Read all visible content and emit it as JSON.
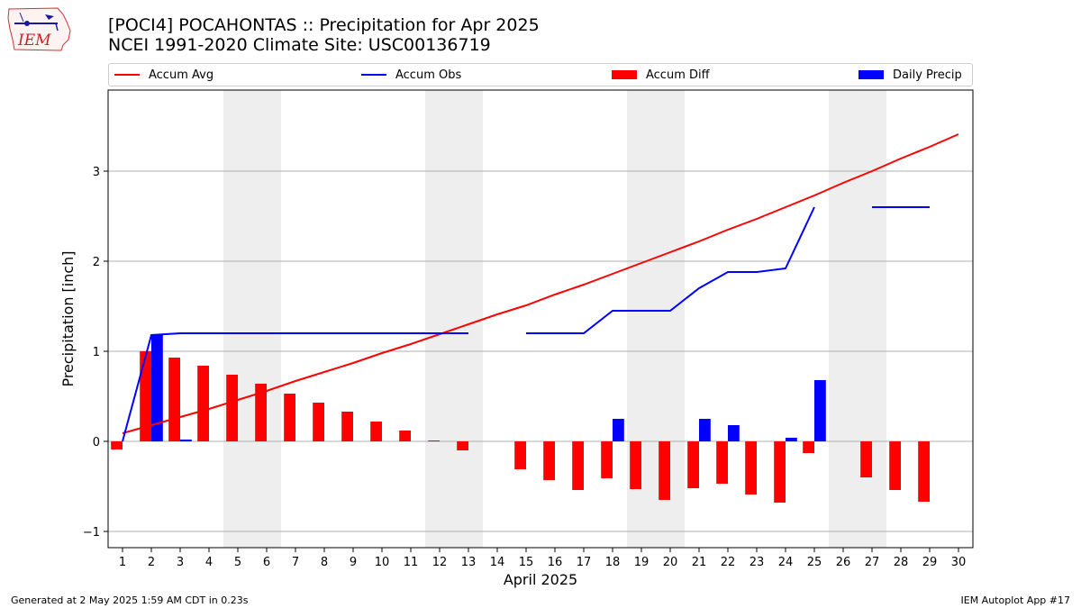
{
  "header": {
    "title_line1": "[POCI4] POCAHONTAS :: Precipitation for Apr 2025",
    "title_line2": "NCEI 1991-2020 Climate Site: USC00136719",
    "logo_text": "IEM"
  },
  "legend": {
    "items": [
      {
        "label": "Accum Avg",
        "kind": "line",
        "color": "#ff0000"
      },
      {
        "label": "Accum Obs",
        "kind": "line",
        "color": "#0000ff"
      },
      {
        "label": "Accum Diff",
        "kind": "bar",
        "color": "#ff0000"
      },
      {
        "label": "Daily Precip",
        "kind": "bar",
        "color": "#0000ff"
      }
    ]
  },
  "chart_data": {
    "type": "bar",
    "xlabel": "April 2025",
    "ylabel": "Precipitation [inch]",
    "x": [
      1,
      2,
      3,
      4,
      5,
      6,
      7,
      8,
      9,
      10,
      11,
      12,
      13,
      14,
      15,
      16,
      17,
      18,
      19,
      20,
      21,
      22,
      23,
      24,
      25,
      26,
      27,
      28,
      29,
      30
    ],
    "xlim": [
      0.5,
      30.5
    ],
    "ylim": [
      -1.18,
      3.9
    ],
    "yticks": [
      -1,
      0,
      1,
      2,
      3
    ],
    "grid": "horizontal",
    "weekend_shading": [
      [
        5,
        6
      ],
      [
        12,
        13
      ],
      [
        19,
        20
      ],
      [
        26,
        27
      ]
    ],
    "series": [
      {
        "name": "Accum Avg",
        "type": "line",
        "color": "#ff0000",
        "values": [
          0.09,
          0.18,
          0.27,
          0.36,
          0.46,
          0.56,
          0.67,
          0.77,
          0.87,
          0.98,
          1.08,
          1.19,
          1.3,
          1.41,
          1.51,
          1.63,
          1.74,
          1.86,
          1.98,
          2.1,
          2.22,
          2.35,
          2.47,
          2.6,
          2.73,
          2.87,
          3.0,
          3.14,
          3.27,
          3.41
        ]
      },
      {
        "name": "Accum Obs",
        "type": "line",
        "color": "#0000ff",
        "values": [
          0.0,
          1.18,
          1.2,
          1.2,
          1.2,
          1.2,
          1.2,
          1.2,
          1.2,
          1.2,
          1.2,
          1.2,
          1.2,
          null,
          1.2,
          1.2,
          1.2,
          1.45,
          1.45,
          1.45,
          1.7,
          1.88,
          1.88,
          1.92,
          2.6,
          null,
          2.6,
          2.6,
          2.6,
          null
        ]
      },
      {
        "name": "Accum Diff",
        "type": "bar",
        "color": "#ff0000",
        "values": [
          -0.09,
          1.0,
          0.93,
          0.84,
          0.74,
          0.64,
          0.53,
          0.43,
          0.33,
          0.22,
          0.12,
          0.01,
          -0.1,
          null,
          -0.31,
          -0.43,
          -0.54,
          -0.41,
          -0.53,
          -0.65,
          -0.52,
          -0.47,
          -0.59,
          -0.68,
          -0.13,
          null,
          -0.4,
          -0.54,
          -0.67,
          null
        ]
      },
      {
        "name": "Daily Precip",
        "type": "bar",
        "color": "#0000ff",
        "values": [
          0,
          1.18,
          0.02,
          0,
          0,
          0,
          0,
          0,
          0,
          0,
          0,
          0,
          0,
          0,
          0,
          0,
          0,
          0.25,
          0,
          0,
          0.25,
          0.18,
          0,
          0.04,
          0.68,
          0,
          0,
          0,
          0,
          0
        ]
      }
    ]
  },
  "footer": {
    "left": "Generated at 2 May 2025 1:59 AM CDT in 0.23s",
    "right": "IEM Autoplot App #17"
  }
}
